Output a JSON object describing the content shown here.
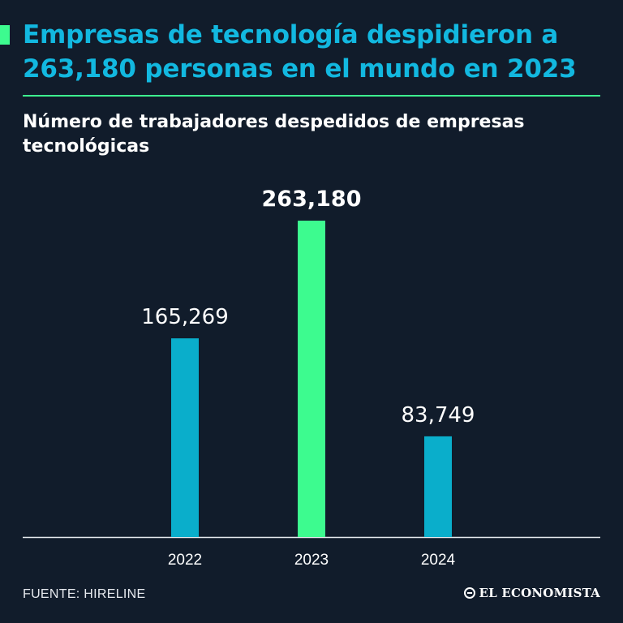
{
  "header": {
    "title": "Empresas de tecnología despidieron a 263,180 personas en el mundo en 2023",
    "subtitle": "Número de trabajadores despedidos de empresas tecnológicas"
  },
  "chart_data": {
    "type": "bar",
    "title": "Número de trabajadores despedidos de empresas tecnológicas",
    "categories": [
      "2022",
      "2023",
      "2024"
    ],
    "values": [
      165269,
      263180,
      83749
    ],
    "data_labels": [
      "165,269",
      "263,180",
      "83,749"
    ],
    "highlight_index": 1,
    "colors": {
      "default": "#0aaecb",
      "highlight": "#3dfb8f"
    },
    "xlabel": "",
    "ylabel": "",
    "ylim": [
      0,
      263180
    ],
    "grid": false,
    "legend": "none"
  },
  "footer": {
    "source": "FUENTE: HIRELINE",
    "logo_text": "EL ECONOMISTA",
    "logo_icon": "el-economista-logo-icon"
  },
  "colors": {
    "background": "#111c2b",
    "title": "#12b8e0",
    "accent": "#3dfb8f",
    "text": "#ffffff"
  }
}
